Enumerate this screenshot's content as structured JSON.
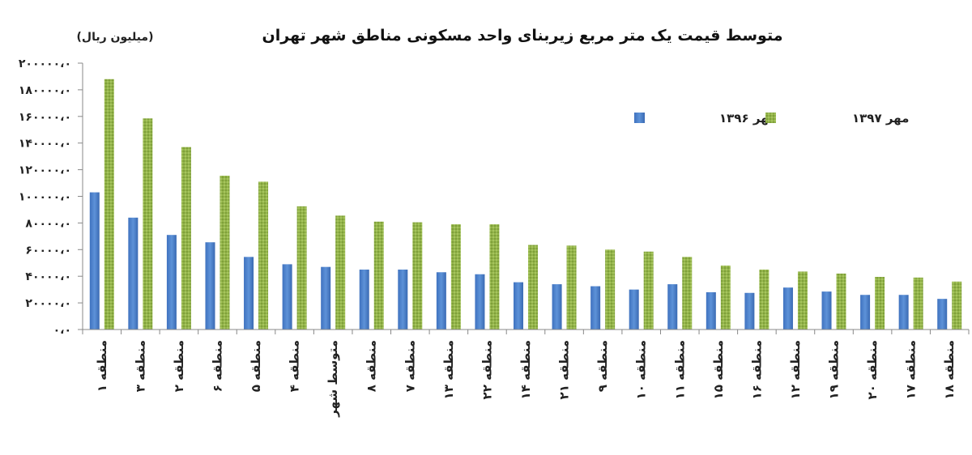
{
  "chart_data": {
    "type": "bar",
    "title": "متوسط قیمت یک متر مربع زیربنای واحد مسکونی مناطق شهر تهران",
    "unit_label": "(میلیون ریال)",
    "ylim": [
      0,
      200000
    ],
    "y_ticks": [
      {
        "value": 0,
        "label": "۰،۰"
      },
      {
        "value": 20000,
        "label": "۲۰۰۰۰،۰"
      },
      {
        "value": 40000,
        "label": "۴۰۰۰۰،۰"
      },
      {
        "value": 60000,
        "label": "۶۰۰۰۰،۰"
      },
      {
        "value": 80000,
        "label": "۸۰۰۰۰،۰"
      },
      {
        "value": 100000,
        "label": "۱۰۰۰۰۰،۰"
      },
      {
        "value": 120000,
        "label": "۱۲۰۰۰۰،۰"
      },
      {
        "value": 140000,
        "label": "۱۴۰۰۰۰،۰"
      },
      {
        "value": 160000,
        "label": "۱۶۰۰۰۰،۰"
      },
      {
        "value": 180000,
        "label": "۱۸۰۰۰۰،۰"
      },
      {
        "value": 200000,
        "label": "۲۰۰۰۰۰،۰"
      }
    ],
    "categories": [
      "منطقه ۱",
      "منطقه ۳",
      "منطقه ۲",
      "منطقه ۶",
      "منطقه ۵",
      "منطقه ۴",
      "متوسط شهر",
      "منطقه ۸",
      "منطقه ۷",
      "منطقه ۱۳",
      "منطقه ۲۲",
      "منطقه ۱۴",
      "منطقه ۲۱",
      "منطقه ۹",
      "منطقه ۱۰",
      "منطقه ۱۱",
      "منطقه ۱۵",
      "منطقه ۱۶",
      "منطقه ۱۲",
      "منطقه ۱۹",
      "منطقه ۲۰",
      "منطقه ۱۷",
      "منطقه ۱۸"
    ],
    "series": [
      {
        "name": "مهر ۱۳۹۶",
        "color": "#4a7fc8",
        "values": [
          103000,
          84000,
          71000,
          65500,
          54500,
          49000,
          47000,
          45000,
          45000,
          43000,
          41500,
          35500,
          34000,
          32500,
          30000,
          34000,
          28000,
          27500,
          31500,
          28500,
          26000,
          26000,
          23000
        ]
      },
      {
        "name": "مهر ۱۳۹۷",
        "color": "#93b44a",
        "values": [
          188000,
          158500,
          137000,
          115500,
          111000,
          92500,
          85500,
          81000,
          80500,
          79000,
          79000,
          63500,
          63000,
          60000,
          58500,
          54500,
          48000,
          45000,
          43500,
          42000,
          39500,
          39000,
          36000
        ]
      }
    ],
    "grid": false,
    "legend_position": "top-right"
  }
}
